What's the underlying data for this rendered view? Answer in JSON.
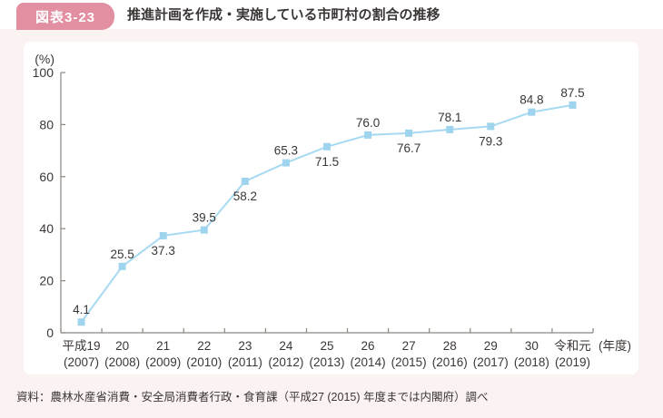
{
  "header": {
    "figure_label": "図表3-23",
    "title": "推進計画を作成・実施している市町村の割合の推移"
  },
  "footer": {
    "source": "資料：農林水産省消費・安全局消費者行政・食育課（平成27 (2015) 年度までは内閣府）調べ"
  },
  "colors": {
    "badge_pink": "#e28fa2",
    "page_pink": "#faf3f2",
    "line_blue": "#a7d9f1",
    "marker_blue": "#9ed4ee",
    "axis_gray": "#8b8682",
    "text_dark": "#3b3736"
  },
  "chart_data": {
    "type": "line",
    "title": "推進計画を作成・実施している市町村の割合の推移",
    "ylabel": "(%)",
    "xlabel_suffix": "(年度)",
    "ylim": [
      0,
      100
    ],
    "yticks": [
      0,
      20,
      40,
      60,
      80,
      100
    ],
    "grid": false,
    "legend": "none",
    "categories": [
      "平成19",
      "20",
      "21",
      "22",
      "23",
      "24",
      "25",
      "26",
      "27",
      "28",
      "29",
      "30",
      "令和元"
    ],
    "category_years": [
      "(2007)",
      "(2008)",
      "(2009)",
      "(2010)",
      "(2011)",
      "(2012)",
      "(2013)",
      "(2014)",
      "(2015)",
      "(2016)",
      "(2017)",
      "(2018)",
      "(2019)"
    ],
    "values": [
      4.1,
      25.5,
      37.3,
      39.5,
      58.2,
      65.3,
      71.5,
      76.0,
      76.7,
      78.1,
      79.3,
      84.8,
      87.5
    ],
    "label_positions": [
      "above",
      "above",
      "below",
      "above",
      "below",
      "above",
      "below",
      "above",
      "below",
      "above",
      "below",
      "above",
      "above"
    ]
  }
}
